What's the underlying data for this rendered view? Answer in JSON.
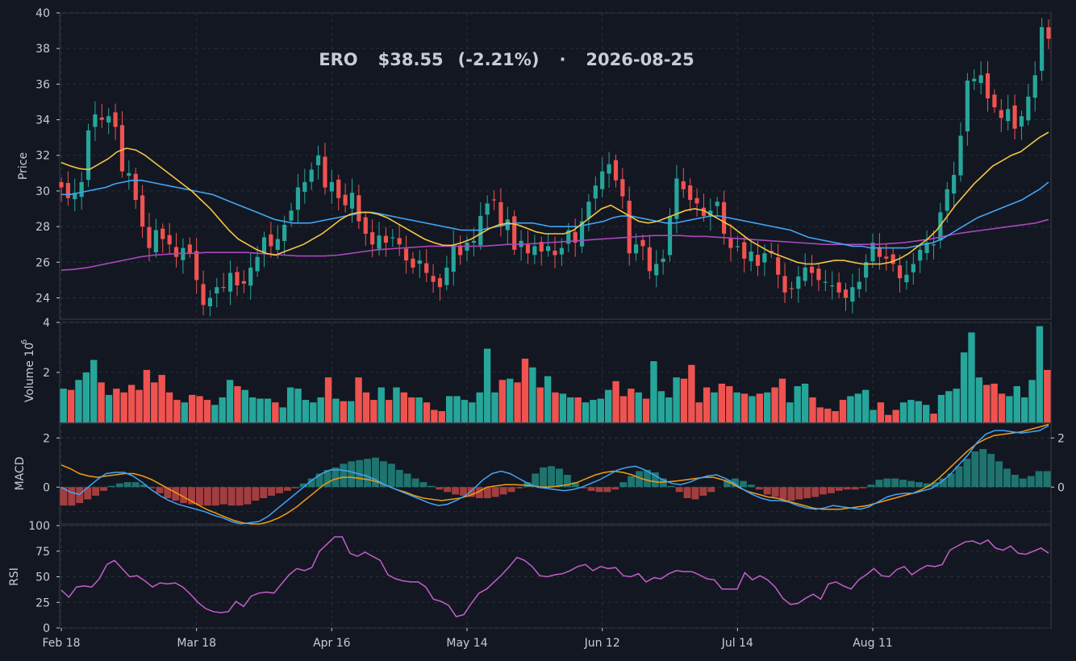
{
  "colors": {
    "background": "#131722",
    "panel_border": "#3a3f4b",
    "grid": "#2a2e39",
    "text": "#c8ccd6",
    "up": "#26a69a",
    "down": "#ef5350",
    "sma20": "#f5c542",
    "sma50": "#42a5f5",
    "sma200": "#ab47bc",
    "macd_line": "#42a5f5",
    "signal_line": "#f39c12",
    "rsi_line": "#c55ec9"
  },
  "chart_data": {
    "type": "candlestick",
    "title": {
      "ticker": "ERO",
      "price": "$38.55",
      "change": "(-2.21%)",
      "separator": "·",
      "date": "2026-08-25"
    },
    "x_ticks": [
      {
        "label": "Feb 18",
        "index": 0
      },
      {
        "label": "Mar 18",
        "index": 20
      },
      {
        "label": "Apr 16",
        "index": 40
      },
      {
        "label": "May 14",
        "index": 60
      },
      {
        "label": "Jun 12",
        "index": 80
      },
      {
        "label": "Jul 14",
        "index": 100
      },
      {
        "label": "Aug 11",
        "index": 120
      }
    ],
    "price_panel": {
      "ylabel": "Price",
      "ylim": [
        22.8,
        40
      ],
      "yticks": [
        24,
        26,
        28,
        30,
        32,
        34,
        36,
        38,
        40
      ],
      "closes": [
        30.2,
        29.6,
        29.9,
        30.5,
        33.4,
        34.3,
        34.0,
        34.2,
        33.6,
        31.1,
        31.0,
        29.5,
        28.0,
        26.8,
        27.8,
        27.3,
        27.0,
        26.3,
        26.8,
        26.5,
        25.0,
        23.6,
        24.0,
        24.6,
        24.6,
        25.4,
        24.7,
        24.8,
        25.7,
        26.3,
        27.4,
        26.9,
        27.3,
        28.1,
        28.9,
        30.2,
        30.5,
        31.2,
        32.0,
        30.2,
        30.5,
        29.6,
        29.2,
        29.9,
        28.3,
        27.6,
        27.0,
        27.5,
        27.1,
        27.4,
        27.0,
        26.1,
        25.7,
        26.1,
        25.4,
        24.9,
        24.6,
        25.7,
        27.0,
        26.4,
        27.1,
        27.2,
        28.6,
        29.3,
        29.5,
        28.0,
        28.4,
        26.7,
        27.2,
        26.5,
        26.9,
        26.6,
        26.9,
        26.4,
        26.8,
        27.8,
        27.1,
        28.3,
        29.4,
        30.3,
        31.1,
        31.5,
        30.6,
        29.7,
        26.5,
        27.0,
        26.9,
        25.5,
        25.9,
        26.2,
        28.6,
        30.7,
        30.1,
        29.5,
        29.3,
        28.6,
        28.9,
        29.4,
        27.6,
        26.8,
        26.9,
        26.2,
        26.6,
        25.8,
        26.5,
        26.5,
        25.3,
        24.3,
        24.5,
        25.2,
        25.7,
        25.4,
        25.0,
        24.9,
        24.7,
        24.3,
        24.0,
        24.6,
        24.9,
        26.0,
        27.1,
        26.3,
        26.2,
        25.9,
        25.1,
        25.3,
        25.9,
        26.7,
        27.1,
        27.0,
        28.8,
        30.1,
        30.9,
        33.1,
        36.2,
        36.3,
        36.5,
        35.2,
        34.7,
        34.1,
        34.6,
        33.5,
        34.2,
        35.3,
        36.5,
        39.2,
        38.55
      ],
      "sma20": [
        31.6,
        31.4,
        31.25,
        31.2,
        31.5,
        31.8,
        32.2,
        32.4,
        32.3,
        32.0,
        31.6,
        31.2,
        30.8,
        30.4,
        30.0,
        29.5,
        29.0,
        28.4,
        27.8,
        27.3,
        27.0,
        26.7,
        26.5,
        26.4,
        26.6,
        26.8,
        27.0,
        27.3,
        27.6,
        28.0,
        28.4,
        28.7,
        28.8,
        28.8,
        28.7,
        28.5,
        28.2,
        27.9,
        27.6,
        27.3,
        27.1,
        26.95,
        26.95,
        27.1,
        27.3,
        27.6,
        27.9,
        28.1,
        28.2,
        28.1,
        27.9,
        27.7,
        27.6,
        27.6,
        27.6,
        27.8,
        28.2,
        28.6,
        29.0,
        29.2,
        28.9,
        28.6,
        28.3,
        28.2,
        28.3,
        28.5,
        28.7,
        28.9,
        29.0,
        28.9,
        28.6,
        28.3,
        28.0,
        27.6,
        27.2,
        26.9,
        26.6,
        26.4,
        26.2,
        26.0,
        25.9,
        25.9,
        26.0,
        26.1,
        26.1,
        26.0,
        25.9,
        25.9,
        25.9,
        26.0,
        26.2,
        26.5,
        26.9,
        27.3,
        27.8,
        28.5,
        29.2,
        29.8,
        30.4,
        30.9,
        31.4,
        31.7,
        32.0,
        32.2,
        32.6,
        33.0,
        33.3
      ],
      "sma50": [
        29.8,
        29.8,
        29.9,
        30.0,
        30.1,
        30.2,
        30.4,
        30.5,
        30.6,
        30.6,
        30.5,
        30.4,
        30.3,
        30.2,
        30.1,
        30.0,
        29.9,
        29.8,
        29.6,
        29.4,
        29.2,
        29.0,
        28.8,
        28.6,
        28.4,
        28.3,
        28.2,
        28.2,
        28.2,
        28.3,
        28.4,
        28.5,
        28.6,
        28.7,
        28.8,
        28.8,
        28.7,
        28.6,
        28.5,
        28.4,
        28.3,
        28.2,
        28.1,
        28.0,
        27.9,
        27.8,
        27.8,
        27.8,
        27.9,
        28.0,
        28.1,
        28.2,
        28.2,
        28.2,
        28.1,
        28.0,
        28.0,
        28.0,
        28.0,
        28.1,
        28.2,
        28.3,
        28.5,
        28.6,
        28.6,
        28.5,
        28.4,
        28.3,
        28.2,
        28.2,
        28.3,
        28.4,
        28.5,
        28.6,
        28.6,
        28.5,
        28.4,
        28.3,
        28.2,
        28.1,
        28.0,
        27.9,
        27.8,
        27.6,
        27.4,
        27.3,
        27.2,
        27.1,
        27.0,
        26.9,
        26.9,
        26.8,
        26.8,
        26.8,
        26.8,
        26.8,
        26.9,
        27.0,
        27.1,
        27.3,
        27.6,
        27.9,
        28.2,
        28.5,
        28.7,
        28.9,
        29.1,
        29.3,
        29.5,
        29.8,
        30.1,
        30.5
      ],
      "sma200": [
        25.55,
        25.6,
        25.7,
        25.85,
        26.0,
        26.15,
        26.3,
        26.4,
        26.45,
        26.5,
        26.5,
        26.55,
        26.55,
        26.55,
        26.55,
        26.5,
        26.45,
        26.4,
        26.35,
        26.35,
        26.35,
        26.4,
        26.5,
        26.6,
        26.7,
        26.75,
        26.8,
        26.85,
        26.9,
        26.9,
        26.9,
        26.9,
        26.9,
        26.95,
        27.0,
        27.0,
        27.05,
        27.1,
        27.15,
        27.2,
        27.25,
        27.3,
        27.35,
        27.4,
        27.45,
        27.5,
        27.5,
        27.5,
        27.45,
        27.45,
        27.4,
        27.35,
        27.3,
        27.25,
        27.2,
        27.15,
        27.1,
        27.05,
        27.0,
        27.0,
        27.0,
        27.0,
        27.0,
        27.05,
        27.1,
        27.2,
        27.3,
        27.45,
        27.6,
        27.7,
        27.8,
        27.9,
        28.0,
        28.1,
        28.2,
        28.4
      ]
    },
    "volume_panel": {
      "ylabel": "Volume",
      "exponent_label": "10",
      "exponent": "6",
      "ylim": [
        0,
        4
      ],
      "yticks": [
        2,
        4
      ],
      "values": [
        1.35,
        1.3,
        1.7,
        2.0,
        2.5,
        1.6,
        1.1,
        1.35,
        1.2,
        1.5,
        1.3,
        2.1,
        1.6,
        1.9,
        1.2,
        0.9,
        0.8,
        1.1,
        1.05,
        0.9,
        0.7,
        1.0,
        1.7,
        1.45,
        1.3,
        1.0,
        0.95,
        0.95,
        0.8,
        0.6,
        1.4,
        1.35,
        0.9,
        0.8,
        1.0,
        1.8,
        0.95,
        0.85,
        0.85,
        1.8,
        1.2,
        0.9,
        1.4,
        0.9,
        1.4,
        1.2,
        1.0,
        1.0,
        0.8,
        0.5,
        0.45,
        1.05,
        1.05,
        0.9,
        0.8,
        1.2,
        2.95,
        1.2,
        1.7,
        1.75,
        1.6,
        2.55,
        2.2,
        1.4,
        1.85,
        1.2,
        1.15,
        1.0,
        1.0,
        0.8,
        0.9,
        0.95,
        1.3,
        1.65,
        1.05,
        1.35,
        1.2,
        0.95,
        2.45,
        1.25,
        1.0,
        1.8,
        1.75,
        2.3,
        0.8,
        1.4,
        1.2,
        1.55,
        1.45,
        1.2,
        1.15,
        1.05,
        1.15,
        1.2,
        1.4,
        1.75,
        0.8,
        1.45,
        1.55,
        1.0,
        0.6,
        0.55,
        0.45,
        0.9,
        1.05,
        1.15,
        1.3,
        0.5,
        0.8,
        0.3,
        0.5,
        0.8,
        0.9,
        0.85,
        0.7,
        0.35,
        1.1,
        1.25,
        1.35,
        2.8,
        3.6,
        1.8,
        1.5,
        1.55,
        1.15,
        1.05,
        1.45,
        1.0,
        1.7,
        3.85,
        2.1
      ]
    },
    "macd_panel": {
      "ylabel": "MACD",
      "ylim": [
        -1.5,
        2.6
      ],
      "yticks_left": [
        -1,
        0,
        2
      ],
      "yticks_left_labels": [
        "",
        "0",
        "2"
      ],
      "yticks_right": [
        0,
        2
      ],
      "macd": [
        0.0,
        -0.2,
        -0.3,
        0.0,
        0.3,
        0.55,
        0.6,
        0.6,
        0.45,
        0.2,
        -0.1,
        -0.35,
        -0.55,
        -0.7,
        -0.8,
        -0.9,
        -1.0,
        -1.15,
        -1.25,
        -1.4,
        -1.5,
        -1.45,
        -1.4,
        -1.2,
        -0.9,
        -0.6,
        -0.3,
        0.0,
        0.3,
        0.55,
        0.7,
        0.7,
        0.65,
        0.55,
        0.45,
        0.3,
        0.1,
        -0.05,
        -0.2,
        -0.35,
        -0.5,
        -0.65,
        -0.75,
        -0.7,
        -0.55,
        -0.35,
        -0.05,
        0.3,
        0.55,
        0.65,
        0.55,
        0.35,
        0.15,
        0.0,
        -0.05,
        -0.1,
        -0.15,
        -0.1,
        0.0,
        0.15,
        0.3,
        0.5,
        0.7,
        0.8,
        0.85,
        0.7,
        0.5,
        0.3,
        0.15,
        0.1,
        0.2,
        0.35,
        0.45,
        0.5,
        0.35,
        0.15,
        -0.1,
        -0.3,
        -0.45,
        -0.55,
        -0.55,
        -0.6,
        -0.75,
        -0.85,
        -0.9,
        -0.85,
        -0.75,
        -0.8,
        -0.85,
        -0.9,
        -0.8,
        -0.6,
        -0.4,
        -0.3,
        -0.25,
        -0.25,
        -0.15,
        -0.05,
        0.2,
        0.5,
        0.9,
        1.3,
        1.8,
        2.15,
        2.3,
        2.3,
        2.25,
        2.2,
        2.25,
        2.3,
        2.5
      ],
      "signal": [
        0.9,
        0.75,
        0.55,
        0.45,
        0.4,
        0.45,
        0.5,
        0.55,
        0.55,
        0.45,
        0.3,
        0.1,
        -0.1,
        -0.3,
        -0.5,
        -0.7,
        -0.9,
        -1.05,
        -1.2,
        -1.35,
        -1.45,
        -1.5,
        -1.5,
        -1.4,
        -1.25,
        -1.05,
        -0.8,
        -0.5,
        -0.2,
        0.1,
        0.3,
        0.4,
        0.4,
        0.35,
        0.3,
        0.2,
        0.05,
        -0.1,
        -0.2,
        -0.35,
        -0.45,
        -0.5,
        -0.55,
        -0.5,
        -0.45,
        -0.35,
        -0.2,
        0.0,
        0.05,
        0.1,
        0.1,
        0.08,
        0.05,
        0.0,
        0.0,
        0.05,
        0.1,
        0.2,
        0.35,
        0.5,
        0.6,
        0.65,
        0.6,
        0.5,
        0.35,
        0.25,
        0.2,
        0.22,
        0.25,
        0.3,
        0.35,
        0.4,
        0.4,
        0.3,
        0.15,
        -0.05,
        -0.2,
        -0.3,
        -0.4,
        -0.45,
        -0.55,
        -0.65,
        -0.75,
        -0.85,
        -0.9,
        -0.9,
        -0.9,
        -0.85,
        -0.8,
        -0.75,
        -0.65,
        -0.55,
        -0.45,
        -0.35,
        -0.25,
        -0.1,
        0.1,
        0.4,
        0.75,
        1.1,
        1.45,
        1.75,
        1.95,
        2.1,
        2.15,
        2.2,
        2.25,
        2.35,
        2.45,
        2.55
      ],
      "histogram": [
        -0.75,
        -0.75,
        -0.65,
        -0.5,
        -0.35,
        -0.15,
        0.05,
        0.15,
        0.2,
        0.2,
        0.1,
        -0.05,
        -0.25,
        -0.45,
        -0.55,
        -0.65,
        -0.7,
        -0.75,
        -0.75,
        -0.75,
        -0.7,
        -0.75,
        -0.75,
        -0.7,
        -0.55,
        -0.45,
        -0.35,
        -0.25,
        -0.15,
        -0.05,
        0.15,
        0.35,
        0.55,
        0.7,
        0.8,
        0.95,
        1.05,
        1.1,
        1.15,
        1.2,
        1.05,
        0.95,
        0.7,
        0.55,
        0.35,
        0.2,
        0.05,
        -0.1,
        -0.2,
        -0.3,
        -0.35,
        -0.4,
        -0.45,
        -0.45,
        -0.4,
        -0.3,
        -0.2,
        -0.05,
        0.2,
        0.55,
        0.8,
        0.85,
        0.75,
        0.5,
        0.2,
        -0.05,
        -0.15,
        -0.2,
        -0.2,
        -0.1,
        0.2,
        0.45,
        0.65,
        0.7,
        0.6,
        0.35,
        0.05,
        -0.2,
        -0.45,
        -0.5,
        -0.35,
        -0.2,
        0.0,
        0.3,
        0.35,
        0.25,
        0.1,
        -0.1,
        -0.3,
        -0.4,
        -0.5,
        -0.55,
        -0.5,
        -0.45,
        -0.4,
        -0.3,
        -0.25,
        -0.15,
        -0.1,
        -0.1,
        -0.05,
        0.1,
        0.3,
        0.35,
        0.35,
        0.3,
        0.25,
        0.2,
        0.15,
        0.2,
        0.35,
        0.55,
        0.85,
        1.15,
        1.45,
        1.55,
        1.35,
        1.05,
        0.75,
        0.5,
        0.35,
        0.45,
        0.65,
        0.65
      ]
    },
    "rsi_panel": {
      "ylabel": "RSI",
      "ylim": [
        0,
        100
      ],
      "yticks": [
        0,
        25,
        50,
        75,
        100
      ],
      "values": [
        37,
        30,
        40,
        41,
        40,
        48,
        62,
        66,
        58,
        50,
        51,
        46,
        40,
        44,
        43,
        44,
        40,
        33,
        25,
        19,
        16,
        15,
        16,
        26,
        21,
        31,
        34,
        35,
        34,
        43,
        52,
        58,
        56,
        59,
        75,
        82,
        89,
        89,
        73,
        70,
        74,
        70,
        66,
        52,
        48,
        46,
        45,
        45,
        40,
        28,
        26,
        22,
        11,
        13,
        24,
        34,
        38,
        45,
        52,
        60,
        69,
        66,
        60,
        51,
        50,
        52,
        53,
        56,
        60,
        62,
        56,
        60,
        58,
        59,
        51,
        50,
        53,
        45,
        49,
        48,
        53,
        56,
        55,
        55,
        52,
        48,
        47,
        38,
        38,
        38,
        54,
        47,
        51,
        47,
        40,
        29,
        23,
        24,
        29,
        33,
        28,
        43,
        45,
        41,
        38,
        47,
        52,
        58,
        51,
        50,
        57,
        60,
        52,
        57,
        61,
        60,
        62,
        76,
        80,
        84,
        85,
        82,
        86,
        78,
        76,
        80,
        73,
        72,
        75,
        78,
        73
      ]
    }
  }
}
